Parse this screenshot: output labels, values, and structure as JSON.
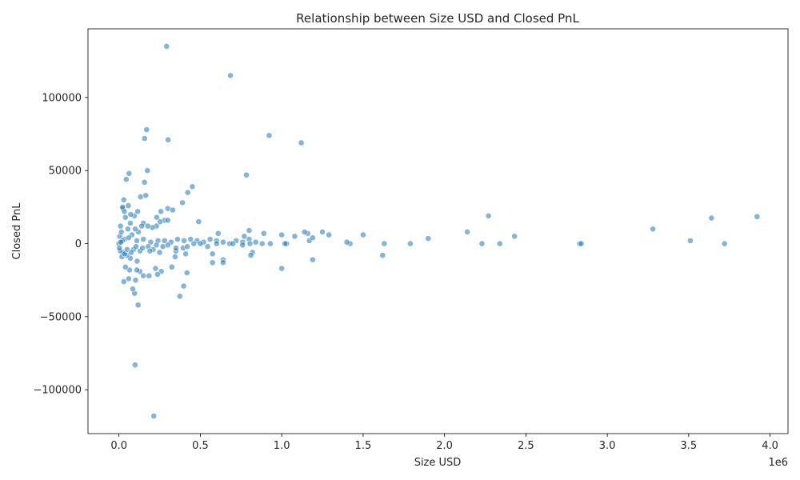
{
  "chart_data": {
    "type": "scatter",
    "title": "Relationship between Size USD and Closed PnL",
    "xlabel": "Size USD",
    "ylabel": "Closed PnL",
    "x_offset_label": "1e6",
    "xlim": [
      -190000,
      4110000
    ],
    "ylim": [
      -130000,
      147000
    ],
    "x_ticks": [
      0,
      500000,
      1000000,
      1500000,
      2000000,
      2500000,
      3000000,
      3500000,
      4000000
    ],
    "x_tick_labels": [
      "0.0",
      "0.5",
      "1.0",
      "1.5",
      "2.0",
      "2.5",
      "3.0",
      "3.5",
      "4.0"
    ],
    "y_ticks": [
      -100000,
      -50000,
      0,
      50000,
      100000
    ],
    "y_tick_labels": [
      "−100000",
      "−50000",
      "0",
      "50000",
      "100000"
    ],
    "grid": false,
    "color": "#1f77b4",
    "series": [
      {
        "x": [
          293000,
          685000,
          170000,
          923000,
          158000,
          302000,
          1120000,
          175000,
          783000,
          62000,
          45000,
          157000,
          451000,
          423000,
          133000,
          165000,
          30000,
          390000,
          58000,
          25000,
          300000,
          330000,
          258000,
          2270000,
          3920000,
          3640000,
          3280000,
          2140000,
          2430000,
          3510000,
          1500000,
          1900000,
          3720000,
          2830000,
          2840000,
          2230000,
          2340000,
          1790000,
          1630000,
          1420000,
          1400000,
          1170000,
          1160000,
          1250000,
          1290000,
          1190000,
          1140000,
          1080000,
          1000000,
          800000,
          890000,
          770000,
          490000,
          610000,
          280000,
          300000,
          232000,
          230000,
          205000,
          94000,
          72000,
          115000,
          150000,
          140000,
          178000,
          253000,
          33000,
          22000,
          10000,
          5000,
          0,
          15000,
          40000,
          55000,
          70000,
          120000,
          100000,
          35000,
          80000,
          20000,
          12000,
          60000,
          110000,
          150000,
          195000,
          240000,
          280000,
          320000,
          360000,
          400000,
          440000,
          480000,
          520000,
          560000,
          600000,
          640000,
          680000,
          720000,
          760000,
          800000,
          840000,
          880000,
          930000,
          1030000,
          1020000,
          820000,
          640000,
          575000,
          545000,
          410000,
          395000,
          345000,
          350000,
          325000,
          260000,
          225000,
          185000,
          150000,
          128000,
          118000,
          110000,
          102000,
          96000,
          85000,
          60000,
          65000,
          40000,
          30000,
          1000000,
          1620000,
          1190000,
          640000,
          575000,
          418000,
          398000,
          374000,
          237000,
          112000,
          99000,
          214000,
          810000,
          70000,
          90000,
          130000,
          180000,
          210000,
          250000,
          300000,
          350000,
          420000,
          460000,
          500000,
          600000,
          700000,
          760000,
          805000,
          48000,
          27000,
          18000,
          8000,
          3000,
          35000,
          50000,
          75000,
          105000,
          145000,
          190000,
          230000,
          270000
        ],
        "y": [
          135000,
          115000,
          78000,
          74000,
          72000,
          71000,
          69000,
          50000,
          47000,
          48000,
          44000,
          42000,
          39000,
          35000,
          32000,
          33000,
          30000,
          28000,
          26000,
          24000,
          24000,
          23000,
          22000,
          19000,
          18500,
          17500,
          10000,
          8000,
          5000,
          2000,
          6000,
          3500,
          0,
          0,
          0,
          0,
          0,
          0,
          0,
          0,
          1000,
          2000,
          7000,
          8000,
          6000,
          4000,
          8000,
          5000,
          6000,
          9000,
          7000,
          5000,
          15000,
          7000,
          16000,
          16000,
          18000,
          12000,
          11000,
          19000,
          20000,
          22000,
          14000,
          12000,
          12000,
          15000,
          22000,
          25000,
          12000,
          5000,
          0,
          8000,
          18000,
          10000,
          14000,
          8000,
          10000,
          3000,
          6000,
          2000,
          1000,
          4000,
          2000,
          3000,
          1000,
          2000,
          2000,
          1000,
          3000,
          2000,
          3000,
          2000,
          1000,
          3000,
          2000,
          1000,
          0,
          2000,
          1000,
          3000,
          1000,
          0,
          0,
          0,
          0,
          -6000,
          -11000,
          -13000,
          -2000,
          -7000,
          -3000,
          -9000,
          -5000,
          -16000,
          -19000,
          -17000,
          -22000,
          -22000,
          -19000,
          -42000,
          -18000,
          -25000,
          -34000,
          -31000,
          -24000,
          -18000,
          -16000,
          -26000,
          -17000,
          -8000,
          -11000,
          -13000,
          -7000,
          -20000,
          -29000,
          -36000,
          -21000,
          -12000,
          -83000,
          -118000,
          -8000,
          -10000,
          -4000,
          -5000,
          -2000,
          -4000,
          -6000,
          -1000,
          -3000,
          -2000,
          0,
          0,
          0,
          0,
          -1000,
          0,
          -8000,
          -6000,
          -9000,
          -5000,
          -3000,
          -7000,
          -4000,
          -6000,
          -2000,
          -3000,
          -5000,
          -1000,
          -2000
        ]
      }
    ]
  }
}
